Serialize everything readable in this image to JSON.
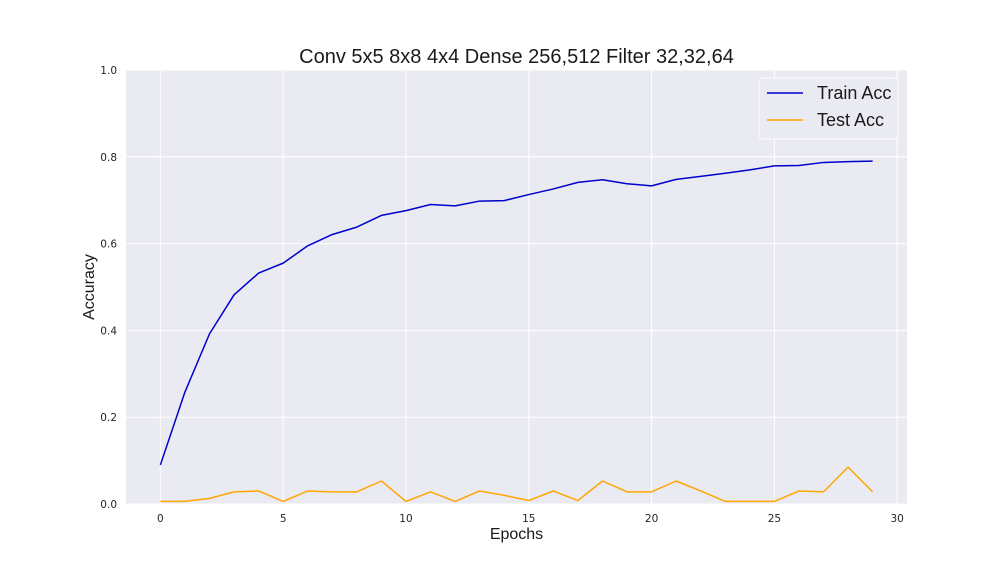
{
  "chart_data": {
    "type": "line",
    "title": "Conv 5x5 8x8 4x4 Dense 256,512 Filter 32,32,64",
    "xlabel": "Epochs",
    "ylabel": "Accuracy",
    "xlim": [
      -1.4,
      30.4
    ],
    "ylim": [
      0.0,
      1.0
    ],
    "xticks": [
      0,
      5,
      10,
      15,
      20,
      25,
      30
    ],
    "yticks": [
      0.0,
      0.2,
      0.4,
      0.6,
      0.8,
      1.0
    ],
    "xtick_labels": [
      "0",
      "5",
      "10",
      "15",
      "20",
      "25",
      "30"
    ],
    "ytick_labels": [
      "0.0",
      "0.2",
      "0.4",
      "0.6",
      "0.8",
      "1.0"
    ],
    "grid": true,
    "background": "#eaeaf2",
    "legend_position": "top-right",
    "x": [
      0,
      1,
      2,
      3,
      4,
      5,
      6,
      7,
      8,
      9,
      10,
      11,
      12,
      13,
      14,
      15,
      16,
      17,
      18,
      19,
      20,
      21,
      22,
      23,
      24,
      25,
      26,
      27,
      28,
      29
    ],
    "series": [
      {
        "name": "Train Acc",
        "color": "#0000cc",
        "values": [
          0.09,
          0.258,
          0.392,
          0.482,
          0.532,
          0.555,
          0.595,
          0.621,
          0.638,
          0.665,
          0.676,
          0.69,
          0.687,
          0.698,
          0.699,
          0.713,
          0.726,
          0.741,
          0.747,
          0.738,
          0.733,
          0.748,
          0.755,
          0.762,
          0.77,
          0.779,
          0.78,
          0.787,
          0.789,
          0.79
        ]
      },
      {
        "name": "Test Acc",
        "color": "#ffa500",
        "values": [
          0.006,
          0.006,
          0.013,
          0.028,
          0.03,
          0.006,
          0.03,
          0.028,
          0.028,
          0.053,
          0.006,
          0.028,
          0.006,
          0.03,
          0.02,
          0.008,
          0.03,
          0.008,
          0.053,
          0.028,
          0.028,
          0.053,
          0.03,
          0.006,
          0.006,
          0.006,
          0.03,
          0.028,
          0.085,
          0.028
        ]
      }
    ]
  }
}
